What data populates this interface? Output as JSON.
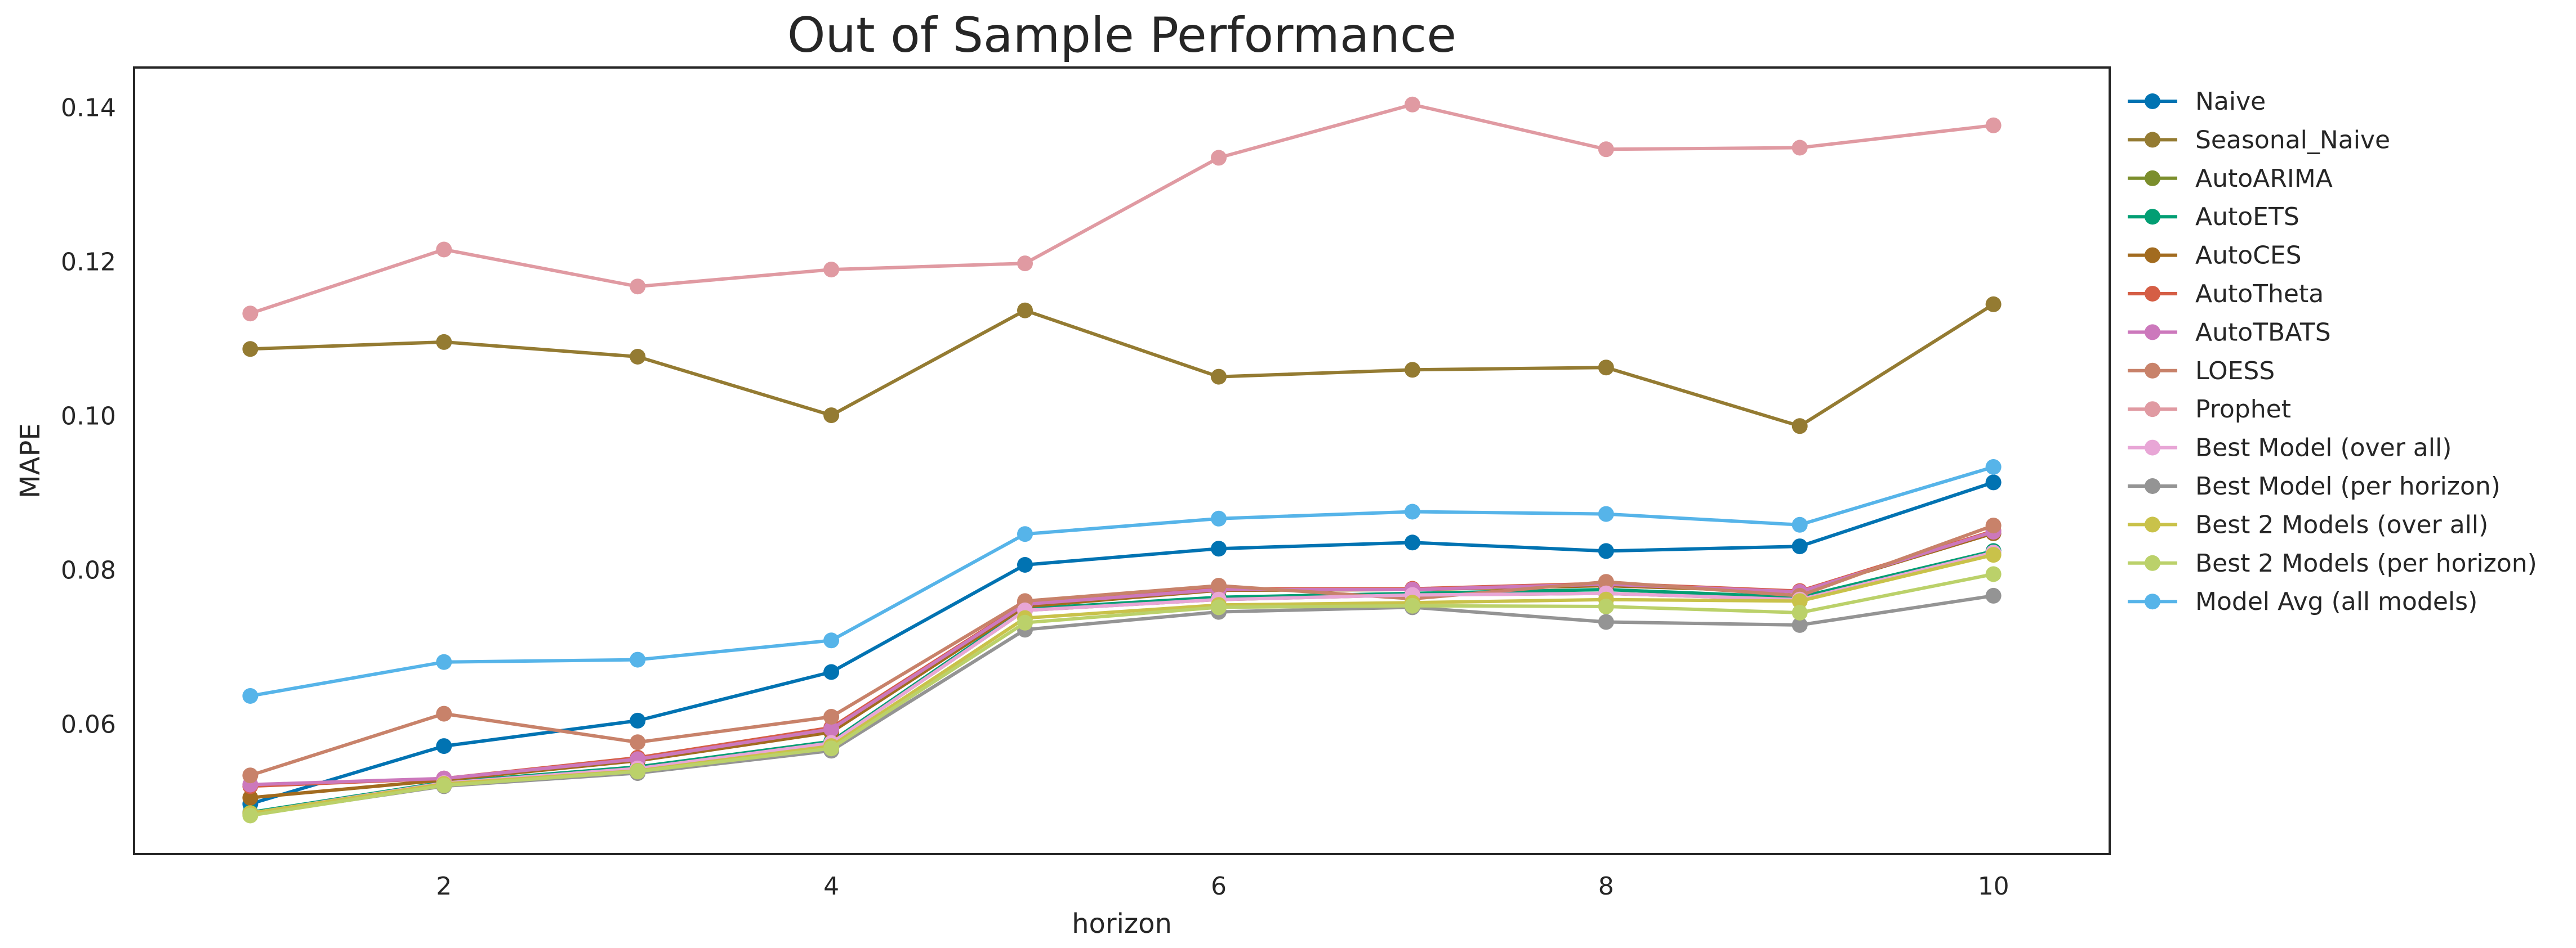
{
  "chart_data": {
    "type": "line",
    "title": "Out of Sample Performance",
    "xlabel": "horizon",
    "ylabel": "MAPE",
    "xlim": [
      0.4,
      10.6
    ],
    "ylim": [
      0.0432,
      0.1452
    ],
    "xticks": [
      2,
      4,
      6,
      8,
      10
    ],
    "xtick_labels": [
      "2",
      "4",
      "6",
      "8",
      "10"
    ],
    "yticks": [
      0.06,
      0.08,
      0.1,
      0.12,
      0.14
    ],
    "ytick_labels": [
      "0.06",
      "0.08",
      "0.10",
      "0.12",
      "0.14"
    ],
    "grid": false,
    "legend_position": "outside-right",
    "x": [
      1,
      2,
      3,
      4,
      5,
      6,
      7,
      8,
      9,
      10
    ],
    "series": [
      {
        "name": "Naive",
        "color": "#0173b2",
        "values": [
          0.0497,
          0.0572,
          0.0605,
          0.0668,
          0.0807,
          0.0828,
          0.0836,
          0.0825,
          0.0831,
          0.0914
        ]
      },
      {
        "name": "Seasonal_Naive",
        "color": "#947b32",
        "values": [
          0.1087,
          0.1096,
          0.1077,
          0.1001,
          0.1137,
          0.1051,
          0.106,
          0.1063,
          0.0987,
          0.1145
        ]
      },
      {
        "name": "AutoARIMA",
        "color": "#7b8e2c",
        "values": [
          0.0485,
          0.0524,
          0.0543,
          0.0576,
          0.0748,
          0.0762,
          0.0768,
          0.077,
          0.0762,
          0.0823
        ]
      },
      {
        "name": "AutoETS",
        "color": "#029e73",
        "values": [
          0.0486,
          0.0525,
          0.0545,
          0.0578,
          0.075,
          0.0765,
          0.077,
          0.0775,
          0.0765,
          0.0825
        ]
      },
      {
        "name": "AutoCES",
        "color": "#a26b1f",
        "values": [
          0.0505,
          0.0528,
          0.0553,
          0.059,
          0.0753,
          0.0774,
          0.0775,
          0.078,
          0.0772,
          0.0848
        ]
      },
      {
        "name": "AutoTheta",
        "color": "#d55e45",
        "values": [
          0.052,
          0.053,
          0.0557,
          0.0596,
          0.0757,
          0.0776,
          0.0776,
          0.0783,
          0.0773,
          0.0851
        ]
      },
      {
        "name": "AutoTBATS",
        "color": "#cc78bc",
        "values": [
          0.0522,
          0.053,
          0.0555,
          0.0594,
          0.0756,
          0.0775,
          0.0775,
          0.0782,
          0.0772,
          0.085
        ]
      },
      {
        "name": "LOESS",
        "color": "#c8826a",
        "values": [
          0.0534,
          0.0614,
          0.0577,
          0.061,
          0.076,
          0.078,
          0.0763,
          0.0785,
          0.0767,
          0.0858
        ]
      },
      {
        "name": "Prophet",
        "color": "#e09aa2",
        "values": [
          0.1133,
          0.1216,
          0.1168,
          0.119,
          0.1198,
          0.1335,
          0.1404,
          0.1346,
          0.1348,
          0.1377
        ]
      },
      {
        "name": "Best Model (over all)",
        "color": "#e8a6d6",
        "values": [
          0.0485,
          0.0524,
          0.0543,
          0.0576,
          0.0748,
          0.0762,
          0.0768,
          0.077,
          0.0762,
          0.0823
        ]
      },
      {
        "name": "Best Model (per horizon)",
        "color": "#949494",
        "values": [
          0.0483,
          0.052,
          0.0537,
          0.0566,
          0.0723,
          0.0746,
          0.0752,
          0.0733,
          0.0729,
          0.0767
        ]
      },
      {
        "name": "Best 2 Models (over all)",
        "color": "#c9c24a",
        "values": [
          0.0485,
          0.0523,
          0.054,
          0.0572,
          0.0738,
          0.0755,
          0.0758,
          0.0762,
          0.076,
          0.082
        ]
      },
      {
        "name": "Best 2 Models (per horizon)",
        "color": "#bbd16a",
        "values": [
          0.0482,
          0.0521,
          0.0539,
          0.0569,
          0.0732,
          0.0752,
          0.0754,
          0.0753,
          0.0745,
          0.0795
        ]
      },
      {
        "name": "Model Avg (all models)",
        "color": "#56b4e9",
        "values": [
          0.0637,
          0.0681,
          0.0684,
          0.0709,
          0.0847,
          0.0867,
          0.0876,
          0.0873,
          0.0859,
          0.0934
        ]
      }
    ]
  }
}
